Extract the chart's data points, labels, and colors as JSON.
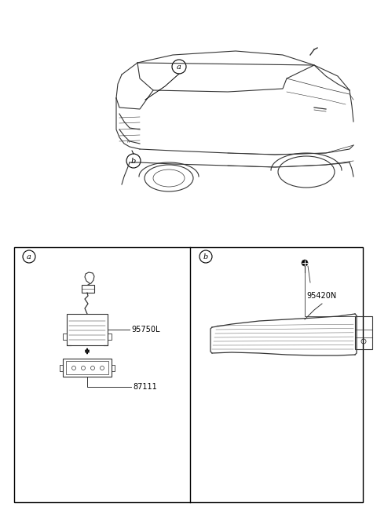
{
  "bg_color": "#ffffff",
  "border_color": "#000000",
  "text_color": "#000000",
  "fig_width": 4.8,
  "fig_height": 6.55,
  "label_a": "a",
  "label_b": "b",
  "part_95750L": "95750L",
  "part_87111": "87111",
  "part_95420N": "95420N",
  "car_color": "#333333",
  "car_lw": 0.8
}
